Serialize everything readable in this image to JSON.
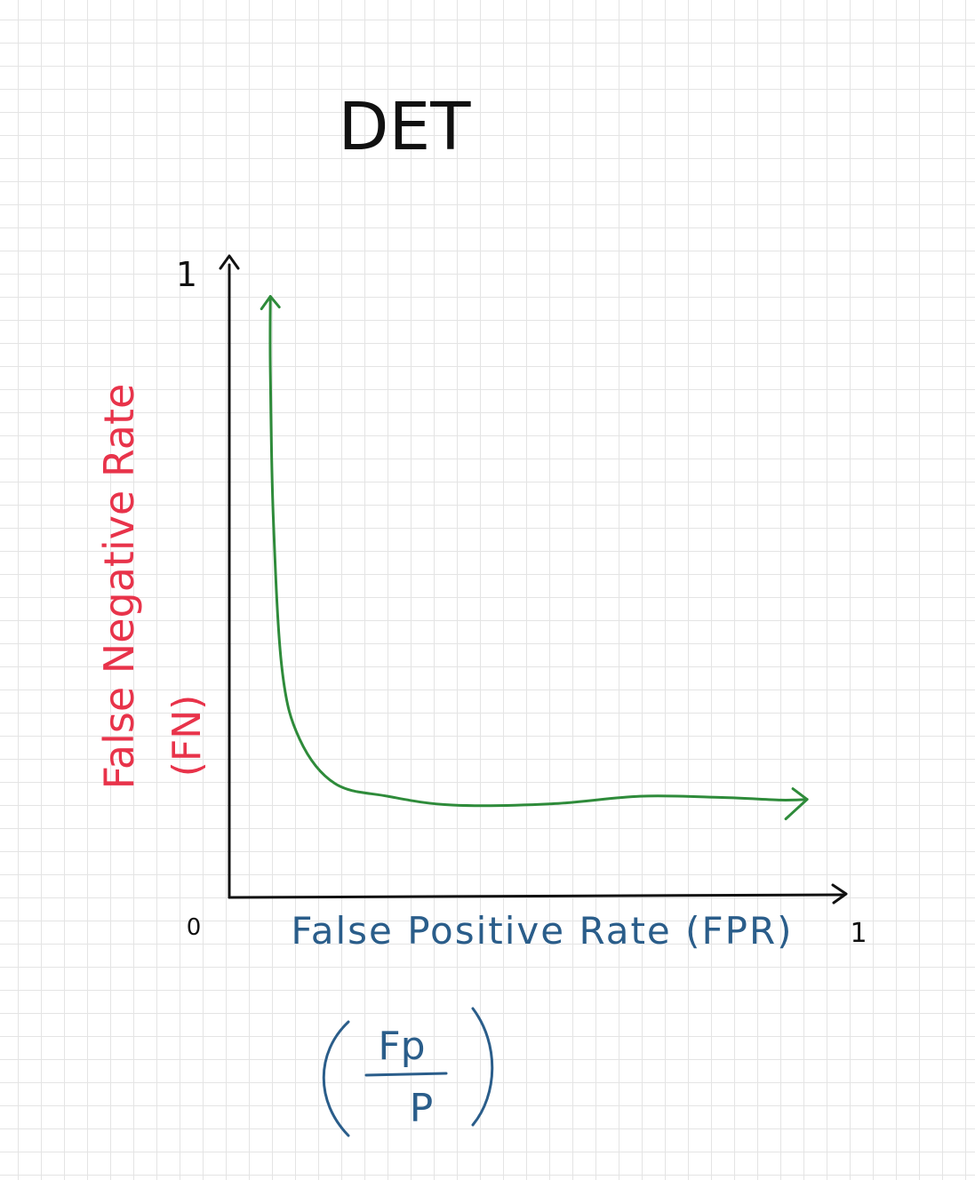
{
  "chart_data": {
    "type": "line",
    "title": "DET",
    "xlabel": "False Positive Rate (FPR)",
    "ylabel": "False Negative Rate",
    "ylabel_abbrev": "(FN)",
    "formula": {
      "numerator": "Fp",
      "denominator": "P"
    },
    "x_ticks": [
      "0",
      "1"
    ],
    "y_ticks": [
      "1"
    ],
    "xlim": [
      0,
      1
    ],
    "ylim": [
      0,
      1
    ],
    "grid": true,
    "series": [
      {
        "color": "#2e8b3a",
        "x": [
          0.07,
          0.07,
          0.075,
          0.09,
          0.12,
          0.18,
          0.27,
          0.38,
          0.55,
          0.7,
          0.84,
          0.94,
          0.985
        ],
        "y": [
          0.95,
          0.83,
          0.6,
          0.36,
          0.25,
          0.18,
          0.16,
          0.146,
          0.148,
          0.16,
          0.158,
          0.154,
          0.155
        ]
      }
    ],
    "colors": {
      "axis": "#111111",
      "title": "#111111",
      "xlabel": "#2a5d8a",
      "ylabel": "#e8334a",
      "formula": "#2a5d8a",
      "curve": "#2e8b3a"
    }
  }
}
